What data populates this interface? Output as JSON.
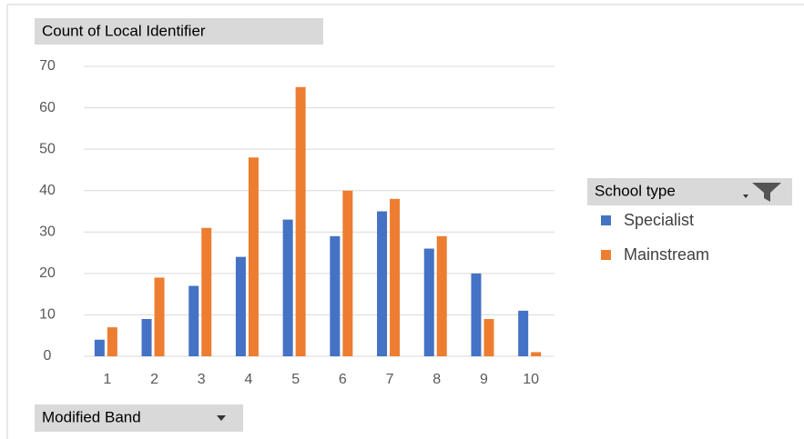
{
  "chart_data": {
    "type": "bar",
    "title": "Count of Local Identifier",
    "x_label": "Modified Band",
    "legend_title": "School type",
    "categories": [
      "1",
      "2",
      "3",
      "4",
      "5",
      "6",
      "7",
      "8",
      "9",
      "10"
    ],
    "series": [
      {
        "name": "Specialist",
        "color": "#4472c4",
        "values": [
          4,
          9,
          17,
          24,
          33,
          29,
          35,
          26,
          20,
          11
        ]
      },
      {
        "name": "Mainstream",
        "color": "#ed7d31",
        "values": [
          7,
          19,
          31,
          48,
          65,
          40,
          38,
          29,
          9,
          1
        ]
      }
    ],
    "ylim": [
      0,
      70
    ],
    "yticks": [
      0,
      10,
      20,
      30,
      40,
      50,
      60,
      70
    ],
    "grid": true,
    "legend": "right"
  }
}
